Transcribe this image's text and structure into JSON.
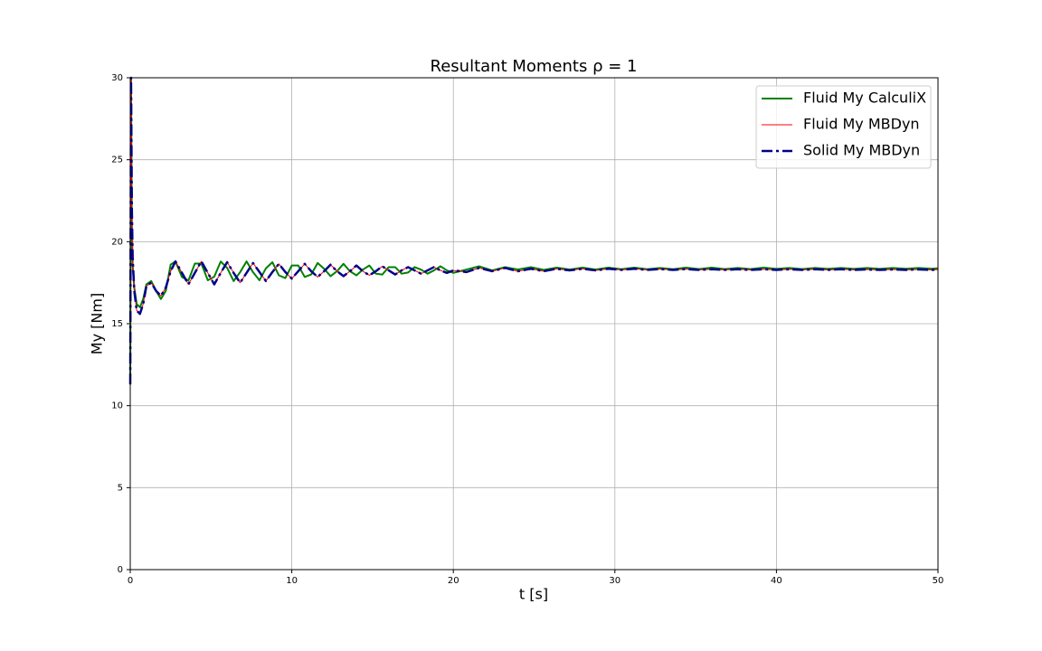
{
  "chart_data": {
    "type": "line",
    "title": "Resultant Moments ρ = 1",
    "xlabel": "t [s]",
    "ylabel": "My [Nm]",
    "x": [
      0,
      0.05,
      0.1,
      0.15,
      0.25,
      0.4,
      0.6,
      0.8,
      1,
      1.3,
      1.6,
      1.9,
      2.2,
      2.5,
      2.8,
      3.2,
      3.6,
      4,
      4.4,
      4.8,
      5.2,
      5.6,
      6,
      6.4,
      6.8,
      7.2,
      7.6,
      8,
      8.4,
      8.8,
      9.2,
      9.6,
      10,
      10.4,
      10.8,
      11.2,
      11.6,
      12,
      12.4,
      12.8,
      13.2,
      13.6,
      14,
      14.4,
      14.8,
      15.2,
      15.6,
      16,
      16.4,
      16.8,
      17.2,
      17.6,
      18,
      18.4,
      18.8,
      19.2,
      19.6,
      20,
      20.8,
      21.6,
      22.4,
      23.2,
      24,
      24.8,
      25.6,
      26.4,
      27.2,
      28,
      28.8,
      29.6,
      30.4,
      31.2,
      32,
      32.8,
      33.6,
      34.4,
      35.2,
      36,
      36.8,
      37.6,
      38.4,
      39.2,
      40,
      40.8,
      41.6,
      42.4,
      43.2,
      44,
      44.8,
      45.6,
      46.4,
      47.2,
      48,
      48.8,
      49.6,
      50
    ],
    "series": [
      {
        "name": "Fluid My CalculiX",
        "color": "#008000",
        "linewidth": 2,
        "linestyle": "solid",
        "values": [
          11.3,
          30,
          21,
          18.5,
          17.2,
          16.2,
          16.0,
          16.5,
          17.4,
          17.6,
          17.0,
          16.5,
          17.0,
          18.6,
          18.8,
          17.85,
          17.63,
          18.67,
          18.67,
          17.65,
          17.87,
          18.79,
          18.4,
          17.6,
          18.14,
          18.8,
          18.14,
          17.65,
          18.38,
          18.75,
          17.95,
          17.78,
          18.55,
          18.55,
          17.85,
          18.0,
          18.7,
          18.35,
          17.9,
          18.2,
          18.65,
          18.2,
          17.95,
          18.3,
          18.55,
          18.05,
          18.0,
          18.45,
          18.45,
          18.05,
          18.12,
          18.45,
          18.3,
          18.05,
          18.25,
          18.5,
          18.25,
          18.1,
          18.3,
          18.5,
          18.25,
          18.45,
          18.3,
          18.45,
          18.28,
          18.42,
          18.3,
          18.42,
          18.3,
          18.42,
          18.32,
          18.42,
          18.32,
          18.4,
          18.32,
          18.42,
          18.33,
          18.42,
          18.33,
          18.4,
          18.33,
          18.42,
          18.34,
          18.4,
          18.33,
          18.4,
          18.34,
          18.4,
          18.34,
          18.4,
          18.34,
          18.4,
          18.35,
          18.4,
          18.35,
          18.38
        ]
      },
      {
        "name": "Fluid My MBDyn",
        "color": "#ff0000",
        "linewidth": 1,
        "linestyle": "solid",
        "values": [
          11.3,
          30,
          22,
          19,
          17,
          15.8,
          15.6,
          16.2,
          17.3,
          17.5,
          17.0,
          16.7,
          17.2,
          18.2,
          18.8,
          18.1,
          17.4,
          18.1,
          18.8,
          18.1,
          17.4,
          18.1,
          18.75,
          18.1,
          17.5,
          18.1,
          18.7,
          18.15,
          17.6,
          18.15,
          18.65,
          18.15,
          17.75,
          18.2,
          18.65,
          18.2,
          17.85,
          18.2,
          18.6,
          18.2,
          17.9,
          18.2,
          18.55,
          18.2,
          17.95,
          18.2,
          18.5,
          18.25,
          18.0,
          18.25,
          18.45,
          18.25,
          18.05,
          18.25,
          18.45,
          18.25,
          18.1,
          18.25,
          18.15,
          18.4,
          18.2,
          18.4,
          18.2,
          18.35,
          18.2,
          18.35,
          18.25,
          18.35,
          18.25,
          18.35,
          18.28,
          18.35,
          18.28,
          18.33,
          18.28,
          18.33,
          18.28,
          18.32,
          18.28,
          18.32,
          18.28,
          18.32,
          18.28,
          18.32,
          18.28,
          18.32,
          18.28,
          18.32,
          18.28,
          18.31,
          18.28,
          18.31,
          18.28,
          18.31,
          18.28,
          18.3
        ]
      },
      {
        "name": "Solid My MBDyn",
        "color": "#00008b",
        "linewidth": 2.5,
        "linestyle": "dashdot",
        "values": [
          11.3,
          30,
          22,
          19,
          17,
          15.8,
          15.6,
          16.2,
          17.3,
          17.5,
          17.0,
          16.7,
          17.2,
          18.2,
          18.8,
          18.1,
          17.4,
          18.1,
          18.8,
          18.1,
          17.4,
          18.1,
          18.75,
          18.1,
          17.5,
          18.1,
          18.7,
          18.15,
          17.6,
          18.15,
          18.65,
          18.15,
          17.75,
          18.2,
          18.65,
          18.2,
          17.85,
          18.2,
          18.6,
          18.2,
          17.9,
          18.2,
          18.55,
          18.2,
          17.95,
          18.2,
          18.5,
          18.25,
          18.0,
          18.25,
          18.45,
          18.25,
          18.05,
          18.25,
          18.45,
          18.25,
          18.1,
          18.25,
          18.15,
          18.4,
          18.2,
          18.4,
          18.2,
          18.35,
          18.2,
          18.35,
          18.25,
          18.35,
          18.25,
          18.35,
          18.28,
          18.35,
          18.28,
          18.33,
          18.28,
          18.33,
          18.28,
          18.32,
          18.28,
          18.32,
          18.28,
          18.32,
          18.28,
          18.32,
          18.28,
          18.32,
          18.28,
          18.32,
          18.28,
          18.31,
          18.28,
          18.31,
          18.28,
          18.31,
          18.28,
          18.3
        ]
      }
    ],
    "xlim": [
      0,
      50
    ],
    "xticks": [
      0,
      10,
      20,
      30,
      40,
      50
    ],
    "ylim": [
      0,
      30
    ],
    "yticks": [
      0,
      5,
      10,
      15,
      20,
      25,
      30
    ],
    "grid": true,
    "legend": "upper right"
  }
}
